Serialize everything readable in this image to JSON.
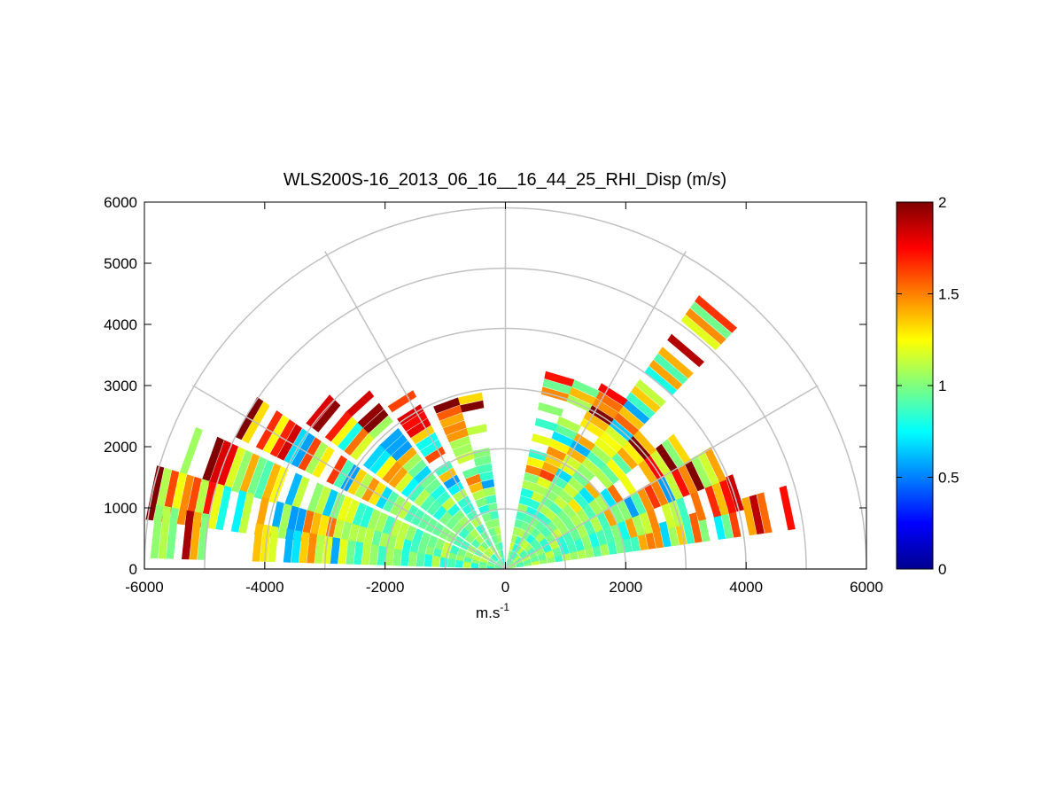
{
  "chart_data": {
    "type": "heatmap",
    "subtype": "polar-rhi-sector-scan",
    "title": "WLS200S-16_2013_06_16__16_44_25_RHI_Disp (m/s)",
    "xlabel": "m.s",
    "xlabel_superscript": "-1",
    "ylabel": "",
    "xlim": [
      -6000,
      6000
    ],
    "ylim": [
      0,
      6000
    ],
    "xticks": [
      "-6000",
      "-4000",
      "-2000",
      "0",
      "2000",
      "4000",
      "6000"
    ],
    "yticks": [
      "0",
      "1000",
      "2000",
      "3000",
      "4000",
      "5000",
      "6000"
    ],
    "polar_grid": {
      "ring_ranges": [
        1000,
        2000,
        3000,
        4000,
        5000,
        6000
      ],
      "spoke_angles_deg": [
        0,
        30,
        60,
        90,
        120,
        150,
        180
      ]
    },
    "colorbar": {
      "colormap": "jet",
      "range": [
        0,
        2
      ],
      "ticks": [
        "0",
        "0.5",
        "1",
        "1.5",
        "2"
      ]
    },
    "scan_rays": [
      {
        "azimuth_deg": 12,
        "max_range_m": 4800
      },
      {
        "azimuth_deg": 18,
        "max_range_m": 4100
      },
      {
        "azimuth_deg": 26,
        "max_range_m": 3900
      },
      {
        "azimuth_deg": 34,
        "max_range_m": 3600
      },
      {
        "azimuth_deg": 42,
        "max_range_m": 3200
      },
      {
        "azimuth_deg": 50,
        "max_range_m": 5500
      },
      {
        "azimuth_deg": 58,
        "max_range_m": 3400
      },
      {
        "azimuth_deg": 66,
        "max_range_m": 3300
      },
      {
        "azimuth_deg": 74,
        "max_range_m": 3250
      },
      {
        "azimuth_deg": 102,
        "max_range_m": 3000
      },
      {
        "azimuth_deg": 110,
        "max_range_m": 2900
      },
      {
        "azimuth_deg": 122,
        "max_range_m": 3200
      },
      {
        "azimuth_deg": 132,
        "max_range_m": 3700
      },
      {
        "azimuth_deg": 140,
        "max_range_m": 4200
      },
      {
        "azimuth_deg": 150,
        "max_range_m": 5000
      },
      {
        "azimuth_deg": 160,
        "max_range_m": 5600
      },
      {
        "azimuth_deg": 168,
        "max_range_m": 6000
      },
      {
        "azimuth_deg": 174,
        "max_range_m": 5900
      }
    ]
  }
}
